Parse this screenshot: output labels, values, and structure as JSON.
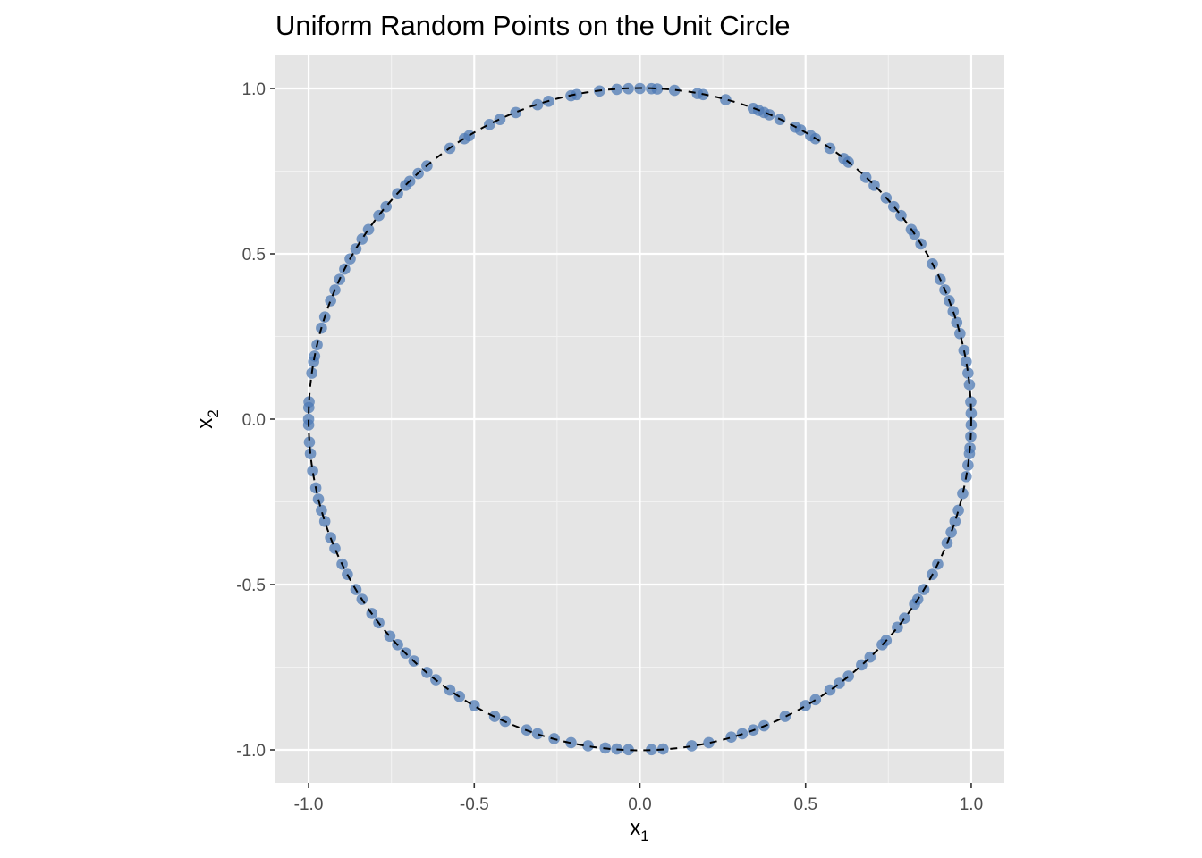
{
  "chart_data": {
    "type": "scatter",
    "title": "Uniform Random Points on the Unit Circle",
    "xlabel": {
      "base": "x",
      "sub": "1"
    },
    "ylabel": {
      "base": "x",
      "sub": "2"
    },
    "xlim": [
      -1.1,
      1.1
    ],
    "ylim": [
      -1.1,
      1.1
    ],
    "x_ticks": [
      -1.0,
      -0.5,
      0.0,
      0.5,
      1.0
    ],
    "x_tick_labels": [
      "-1.0",
      "-0.5",
      "0.0",
      "0.5",
      "1.0"
    ],
    "y_ticks": [
      -1.0,
      -0.5,
      0.0,
      0.5,
      1.0
    ],
    "y_tick_labels": [
      "-1.0",
      "-0.5",
      "0.0",
      "0.5",
      "1.0"
    ],
    "grid": true,
    "reference_curve": {
      "shape": "unit-circle",
      "radius": 1.0,
      "style": "dashed",
      "color": "#000000"
    },
    "point_color": "#4e79b4",
    "point_opacity": 0.75,
    "panel_background": "#e5e5e5",
    "series": [
      {
        "angles_deg": [
          1,
          3,
          6,
          8,
          10,
          12,
          15,
          17,
          19,
          21,
          23,
          25,
          28,
          32,
          34,
          35,
          38,
          40,
          42,
          45,
          47,
          51,
          52,
          55,
          58,
          59,
          61,
          62,
          65,
          67,
          68,
          69,
          70,
          75,
          79,
          80,
          84,
          87,
          88,
          90,
          92,
          94,
          97,
          101,
          102,
          106,
          108,
          112,
          115,
          117,
          121,
          122,
          125,
          130,
          132,
          134,
          135,
          137,
          140,
          142,
          145,
          147,
          149,
          151,
          153,
          155,
          157,
          159,
          162,
          164,
          167,
          169,
          170,
          172,
          177,
          178,
          180,
          181,
          184,
          186,
          189,
          192,
          194,
          196,
          198,
          201,
          203,
          206,
          208,
          211,
          213,
          216,
          218,
          221,
          223,
          225,
          227,
          230,
          232,
          235,
          237,
          240,
          244,
          246,
          250,
          252,
          255,
          258,
          261,
          264,
          266,
          268,
          272,
          274,
          279,
          282,
          286,
          288,
          290,
          292,
          296,
          300,
          302,
          305,
          307,
          309,
          312,
          314,
          317,
          318,
          321,
          323,
          326,
          327,
          329,
          332,
          334,
          338,
          340,
          342,
          344,
          347,
          350,
          352,
          354,
          355,
          357,
          359
        ]
      }
    ]
  }
}
